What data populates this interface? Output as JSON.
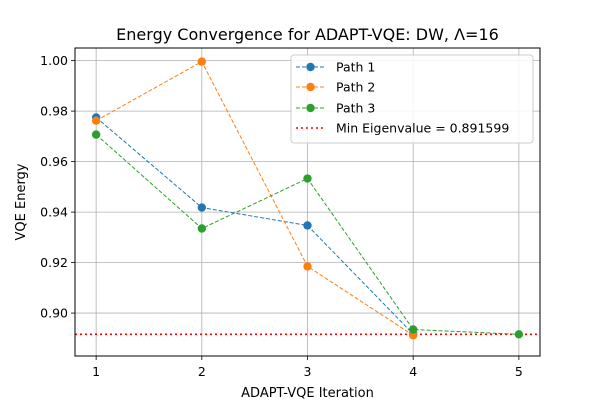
{
  "chart_data": {
    "type": "line",
    "title": "Energy Convergence for ADAPT-VQE: DW, Λ=16",
    "xlabel": "ADAPT-VQE Iteration",
    "ylabel": "VQE Energy",
    "xlim": [
      0.8,
      5.2
    ],
    "ylim": [
      0.883,
      1.005
    ],
    "xticks": [
      1,
      2,
      3,
      4,
      5
    ],
    "xtick_labels": [
      "1",
      "2",
      "3",
      "4",
      "5"
    ],
    "yticks": [
      0.9,
      0.92,
      0.94,
      0.96,
      0.98,
      1.0
    ],
    "ytick_labels": [
      "0.90",
      "0.92",
      "0.94",
      "0.96",
      "0.98",
      "1.00"
    ],
    "grid": true,
    "legend_position": "top-right",
    "series": [
      {
        "name": "Path 1",
        "color": "#1f77b4",
        "x": [
          1,
          2,
          3,
          4
        ],
        "y": [
          0.9775,
          0.9418,
          0.9347,
          0.8917
        ]
      },
      {
        "name": "Path 2",
        "color": "#ff7f0e",
        "x": [
          1,
          2,
          3,
          4
        ],
        "y": [
          0.9762,
          0.9996,
          0.9185,
          0.8912
        ]
      },
      {
        "name": "Path 3",
        "color": "#2ca02c",
        "x": [
          1,
          2,
          3,
          4,
          5
        ],
        "y": [
          0.9707,
          0.9335,
          0.9533,
          0.8935,
          0.8916
        ]
      }
    ],
    "reference_line": {
      "label": "Min Eigenvalue = 0.891599",
      "value": 0.891599,
      "color": "#ff0000"
    }
  }
}
